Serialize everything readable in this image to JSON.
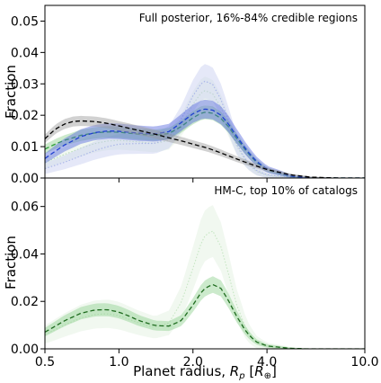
{
  "chart_data": [
    {
      "type": "line",
      "annotation": "Full posterior, 16%-84% credible regions",
      "xlabel": "",
      "ylabel": "Fraction",
      "xscale": "log",
      "xlim": [
        0.5,
        10.0
      ],
      "ylim": [
        0.0,
        0.055
      ],
      "yticks": [
        "0.00",
        "0.01",
        "0.02",
        "0.03",
        "0.04",
        "0.05"
      ],
      "grid": false,
      "legend": "none",
      "series": [
        {
          "color": "#000000",
          "style": "dashed",
          "band_color": "#9a9a9a",
          "x": [
            0.5,
            0.55,
            0.6,
            0.65,
            0.7,
            0.8,
            0.9,
            1.0,
            1.2,
            1.4,
            1.6,
            1.8,
            2.0,
            2.3,
            2.6,
            3.0,
            3.5,
            4.0,
            5.0,
            6.0,
            7.0,
            8.0,
            10.0
          ],
          "y": [
            0.0125,
            0.0155,
            0.0172,
            0.018,
            0.0182,
            0.018,
            0.0174,
            0.0166,
            0.0152,
            0.014,
            0.0128,
            0.0118,
            0.0108,
            0.0095,
            0.008,
            0.0061,
            0.0042,
            0.0027,
            0.001,
            0.0003,
            0.0001,
            0.0,
            0.0
          ],
          "band": 0.0016
        },
        {
          "color": "#1f3fd0",
          "style": "dashed",
          "band_color": "#5566dd",
          "x": [
            0.5,
            0.55,
            0.6,
            0.7,
            0.8,
            0.9,
            1.0,
            1.2,
            1.4,
            1.6,
            1.8,
            2.0,
            2.2,
            2.4,
            2.6,
            2.8,
            3.0,
            3.3,
            3.6,
            4.0,
            5.0,
            6.0,
            8.0,
            10.0
          ],
          "y": [
            0.0062,
            0.0085,
            0.0105,
            0.0132,
            0.0145,
            0.015,
            0.0149,
            0.0143,
            0.014,
            0.0148,
            0.0178,
            0.0205,
            0.022,
            0.0217,
            0.02,
            0.017,
            0.0135,
            0.009,
            0.0055,
            0.0028,
            0.0006,
            0.0001,
            0.0,
            0.0
          ],
          "band": 0.003
        },
        {
          "color": "#2e9e3a",
          "style": "dashed",
          "band_color": "#8fd08f",
          "x": [
            0.5,
            0.55,
            0.6,
            0.7,
            0.8,
            0.9,
            1.0,
            1.2,
            1.4,
            1.6,
            1.8,
            2.0,
            2.2,
            2.4,
            2.6,
            2.8,
            3.0,
            3.3,
            3.6,
            4.0,
            5.0,
            6.0,
            8.0,
            10.0
          ],
          "y": [
            0.0092,
            0.0108,
            0.012,
            0.0136,
            0.0144,
            0.0147,
            0.0146,
            0.014,
            0.0136,
            0.0142,
            0.0165,
            0.0192,
            0.021,
            0.0207,
            0.019,
            0.0162,
            0.0128,
            0.0085,
            0.0052,
            0.0026,
            0.0005,
            0.0001,
            0.0,
            0.0
          ],
          "band": 0.0022
        },
        {
          "color": "#a8b4e8",
          "style": "dotted",
          "band_color": "#c6cdf0",
          "x": [
            0.5,
            0.6,
            0.7,
            0.8,
            0.9,
            1.0,
            1.2,
            1.4,
            1.6,
            1.8,
            2.0,
            2.2,
            2.4,
            2.6,
            2.8,
            3.0,
            3.3,
            3.6,
            4.0,
            5.0,
            6.0,
            10.0
          ],
          "y": [
            0.003,
            0.005,
            0.007,
            0.0088,
            0.01,
            0.0108,
            0.011,
            0.011,
            0.013,
            0.019,
            0.0262,
            0.031,
            0.03,
            0.025,
            0.018,
            0.011,
            0.0055,
            0.0025,
            0.001,
            0.0002,
            0.0,
            0.0
          ],
          "band": 0.0055
        },
        {
          "color": "#b8ddb8",
          "style": "dotted",
          "band_color": "#dff0dd",
          "x": [
            0.5,
            0.6,
            0.7,
            0.8,
            0.9,
            1.0,
            1.2,
            1.4,
            1.6,
            1.8,
            2.0,
            2.2,
            2.4,
            2.6,
            2.8,
            3.0,
            3.3,
            3.6,
            4.0,
            5.0,
            6.0,
            10.0
          ],
          "y": [
            0.005,
            0.0075,
            0.0095,
            0.011,
            0.0118,
            0.012,
            0.0115,
            0.011,
            0.012,
            0.017,
            0.0235,
            0.028,
            0.027,
            0.0225,
            0.0165,
            0.0105,
            0.005,
            0.0022,
            0.0008,
            0.0001,
            0.0,
            0.0
          ],
          "band": 0.0045
        }
      ]
    },
    {
      "type": "line",
      "annotation": "HM-C, top 10% of catalogs",
      "xlabel": "Planet radius, R_p [R_⊕]",
      "ylabel": "Fraction",
      "xscale": "log",
      "xlim": [
        0.5,
        10.0
      ],
      "ylim": [
        0.0,
        0.072
      ],
      "xticks": [
        "0.5",
        "1.0",
        "2.0",
        "4.0",
        "10.0"
      ],
      "yticks": [
        "0.00",
        "0.02",
        "0.04",
        "0.06"
      ],
      "grid": false,
      "legend": "none",
      "series": [
        {
          "color": "#1e6b1e",
          "style": "dashed",
          "band_color": "#8fd08f",
          "x": [
            0.5,
            0.55,
            0.6,
            0.7,
            0.8,
            0.9,
            1.0,
            1.1,
            1.2,
            1.4,
            1.6,
            1.8,
            2.0,
            2.2,
            2.4,
            2.6,
            2.8,
            3.0,
            3.3,
            3.6,
            4.0,
            5.0,
            6.0,
            8.0,
            10.0
          ],
          "y": [
            0.007,
            0.0095,
            0.0118,
            0.015,
            0.0164,
            0.0165,
            0.0155,
            0.0138,
            0.012,
            0.0098,
            0.0096,
            0.012,
            0.0185,
            0.025,
            0.0272,
            0.0255,
            0.02,
            0.014,
            0.007,
            0.003,
            0.0012,
            0.0002,
            0.0,
            0.0,
            0.0
          ],
          "band": 0.0035
        },
        {
          "color": "#c6e6c3",
          "style": "dotted",
          "band_color": "#dff0dd",
          "x": [
            0.5,
            0.6,
            0.7,
            0.8,
            0.9,
            1.0,
            1.2,
            1.4,
            1.6,
            1.8,
            2.0,
            2.2,
            2.4,
            2.6,
            2.8,
            3.0,
            3.3,
            3.6,
            4.0,
            5.0,
            6.0,
            10.0
          ],
          "y": [
            0.006,
            0.01,
            0.013,
            0.0145,
            0.0148,
            0.014,
            0.011,
            0.009,
            0.011,
            0.02,
            0.034,
            0.047,
            0.05,
            0.043,
            0.031,
            0.019,
            0.008,
            0.003,
            0.001,
            0.0001,
            0.0,
            0.0
          ],
          "band": 0.011
        }
      ]
    }
  ]
}
